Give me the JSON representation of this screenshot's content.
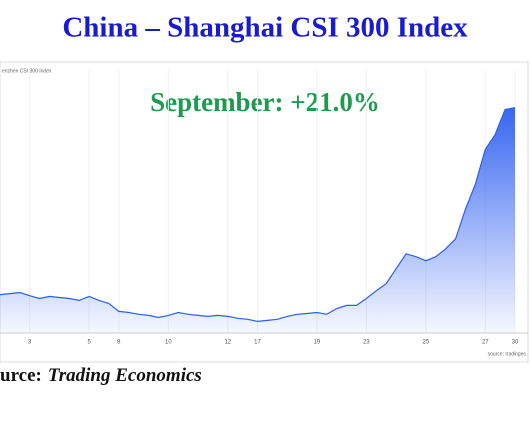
{
  "title": "China – Shanghai CSI 300 Index",
  "source_prefix": "urce:",
  "source_name": "Trading Economics",
  "chart_data": {
    "type": "area",
    "title": "enzhen CSI 300 Index",
    "annotation": "September: +21.0%",
    "source": "source: tradingec",
    "color": "#2d5ff0",
    "categories": [
      null,
      null,
      null,
      "3",
      null,
      null,
      null,
      null,
      null,
      "5",
      null,
      null,
      "8",
      null,
      null,
      null,
      null,
      "10",
      null,
      null,
      null,
      null,
      null,
      "12",
      null,
      null,
      "17",
      null,
      null,
      null,
      null,
      null,
      "19",
      null,
      null,
      null,
      null,
      "23",
      null,
      null,
      null,
      null,
      null,
      "25",
      null,
      null,
      null,
      null,
      null,
      "27",
      null,
      null,
      "30"
    ],
    "values": [
      3296,
      3300,
      3304,
      3292,
      3281,
      3289,
      3285,
      3281,
      3274,
      3289,
      3274,
      3262,
      3232,
      3228,
      3221,
      3217,
      3209,
      3217,
      3228,
      3221,
      3217,
      3213,
      3217,
      3213,
      3206,
      3202,
      3194,
      3198,
      3202,
      3213,
      3221,
      3224,
      3228,
      3221,
      3243,
      3255,
      3255,
      3281,
      3311,
      3338,
      3395,
      3451,
      3440,
      3425,
      3440,
      3470,
      3508,
      3621,
      3716,
      3848,
      3905,
      4000,
      4007
    ],
    "ylim": [
      3150,
      4150
    ]
  }
}
